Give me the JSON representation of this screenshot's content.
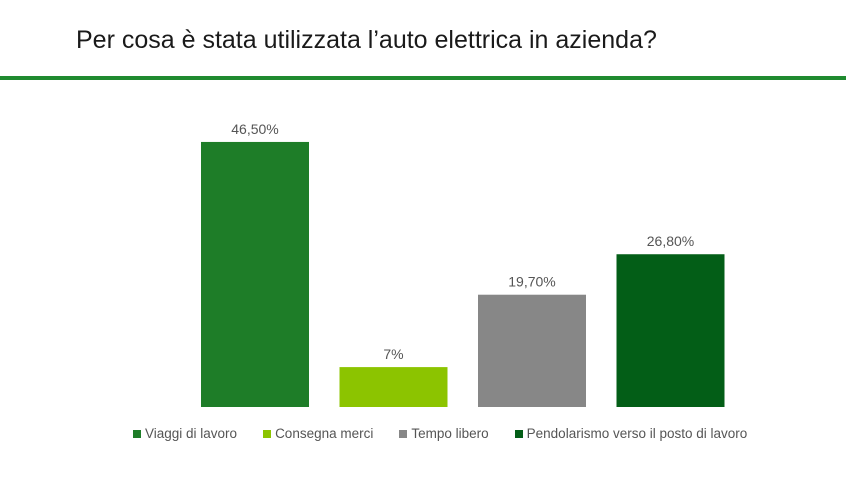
{
  "title": "Per cosa è stata utilizzata l’auto elettrica in azienda?",
  "accent_color": "#1f8a2f",
  "chart_data": {
    "type": "bar",
    "title": "",
    "xlabel": "",
    "ylabel": "",
    "ylim": [
      0,
      50
    ],
    "grid": false,
    "legend_position": "bottom",
    "categories": [
      "Viaggi di lavoro",
      "Consegna merci",
      "Tempo libero",
      "Pendolarismo verso il posto di lavoro"
    ],
    "values": [
      46.5,
      7,
      19.7,
      26.8
    ],
    "value_labels": [
      "46,50%",
      "7%",
      "19,70%",
      "26,80%"
    ],
    "colors": [
      "#1e7d28",
      "#8cc400",
      "#878787",
      "#035e17"
    ]
  }
}
